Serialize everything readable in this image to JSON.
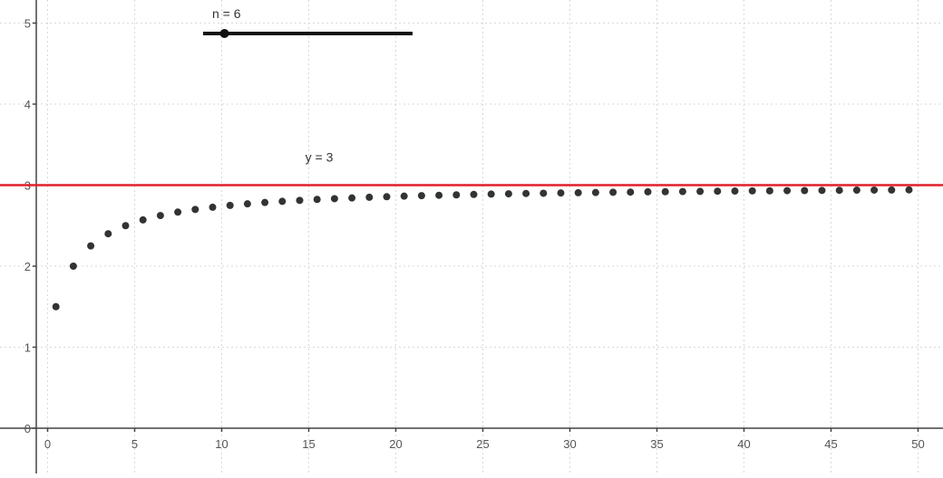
{
  "chart_data": {
    "type": "scatter",
    "title": "",
    "xlabel": "",
    "ylabel": "",
    "xlim": [
      -0.5,
      51.5
    ],
    "ylim": [
      -0.15,
      5.2
    ],
    "grid": true,
    "x_ticks": [
      0,
      5,
      10,
      15,
      20,
      25,
      30,
      35,
      40,
      45,
      50
    ],
    "y_ticks": [
      0,
      1,
      2,
      3,
      4,
      5
    ],
    "x_tick_labels": [
      "0",
      "5",
      "10",
      "15",
      "20",
      "25",
      "30",
      "35",
      "40",
      "45",
      "50"
    ],
    "y_tick_labels": [
      "0",
      "1",
      "2",
      "3",
      "4",
      "5"
    ],
    "series": [
      {
        "x": [
          1,
          2,
          3,
          4,
          5,
          6,
          7,
          8,
          9,
          10,
          11,
          12,
          13,
          14,
          15,
          16,
          17,
          18,
          19,
          20,
          21,
          22,
          23,
          24,
          25,
          26,
          27,
          28,
          29,
          30,
          31,
          32,
          33,
          34,
          35,
          36,
          37,
          38,
          39,
          40,
          41,
          42,
          43,
          44,
          45,
          46,
          47,
          48,
          49,
          50
        ],
        "y": [
          1.5,
          2,
          2.25,
          2.4,
          2.5,
          2.571,
          2.625,
          2.667,
          2.7,
          2.727,
          2.75,
          2.769,
          2.786,
          2.8,
          2.812,
          2.824,
          2.833,
          2.842,
          2.85,
          2.857,
          2.864,
          2.87,
          2.875,
          2.88,
          2.885,
          2.889,
          2.893,
          2.897,
          2.9,
          2.903,
          2.906,
          2.909,
          2.912,
          2.914,
          2.917,
          2.919,
          2.921,
          2.923,
          2.925,
          2.927,
          2.929,
          2.93,
          2.932,
          2.933,
          2.935,
          2.936,
          2.938,
          2.939,
          2.94,
          2.942
        ],
        "color": "#333333"
      }
    ],
    "reference_line": {
      "y": 3,
      "label": "y = 3",
      "color": "#e0202a"
    },
    "slider": {
      "label": "n = 6",
      "value": 6,
      "min": 1,
      "max": 50
    }
  }
}
